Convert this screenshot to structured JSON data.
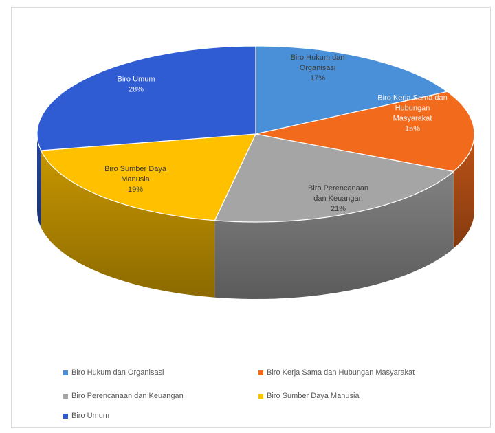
{
  "chart_data": {
    "type": "pie",
    "style": "3d-exploded-disc",
    "title": "",
    "legend_position": "bottom",
    "slices": [
      {
        "name": "Biro Hukum dan Organisasi",
        "label_lines": [
          "Biro Hukum dan",
          "Organisasi"
        ],
        "value": 17,
        "value_label": "17%",
        "color": "#4a90d9"
      },
      {
        "name": "Biro Kerja Sama dan Hubungan Masyarakat",
        "label_lines": [
          "Biro Kerja Sama dan",
          "Hubungan",
          "Masyarakat"
        ],
        "value": 15,
        "value_label": "15%",
        "color": "#f26b1d"
      },
      {
        "name": "Biro Perencanaan dan Keuangan",
        "label_lines": [
          "Biro Perencanaan",
          "dan Keuangan"
        ],
        "value": 21,
        "value_label": "21%",
        "color": "#a5a5a5"
      },
      {
        "name": "Biro Sumber Daya Manusia",
        "label_lines": [
          "Biro Sumber Daya",
          "Manusia"
        ],
        "value": 19,
        "value_label": "19%",
        "color": "#ffc000"
      },
      {
        "name": "Biro Umum",
        "label_lines": [
          "Biro Umum"
        ],
        "value": 28,
        "value_label": "28%",
        "color": "#2f5bd3"
      }
    ]
  }
}
